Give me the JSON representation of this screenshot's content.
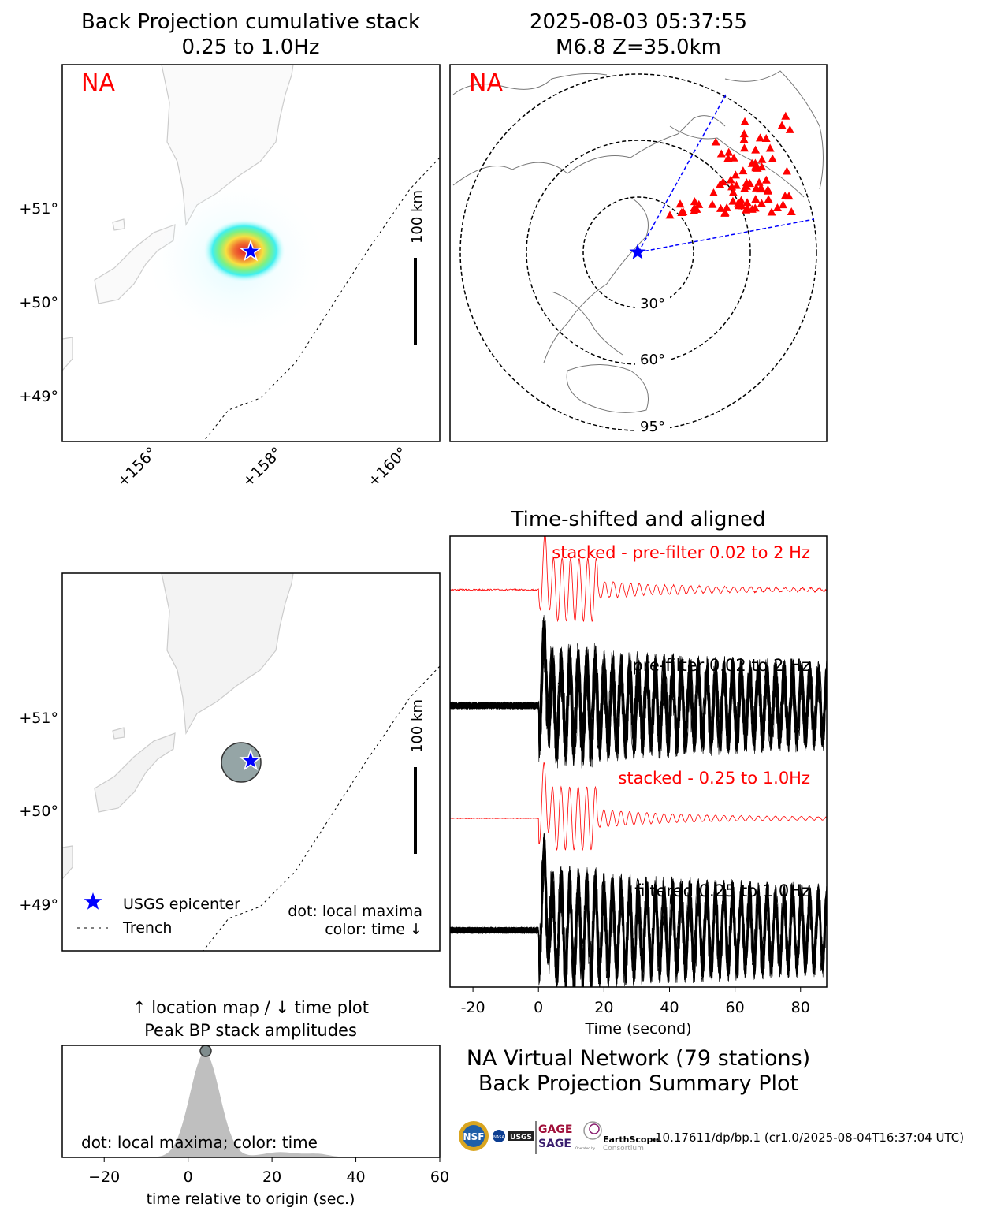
{
  "chart_data": [
    {
      "type": "heatmap",
      "title": [
        "Back Projection cumulative stack",
        "0.25 to 1.0Hz"
      ],
      "network_label": "NA",
      "lat_ticks": [
        "+49°",
        "+50°",
        "+51°"
      ],
      "lon_ticks": [
        "+156°",
        "+158°",
        "+160°"
      ],
      "scale_bar": "100 km",
      "epicenter": {
        "lon": 158.0,
        "lat": 50.5
      }
    },
    {
      "type": "scatter",
      "title": [
        "2025-08-03 05:37:55",
        "M6.8 Z=35.0km"
      ],
      "network_label": "NA",
      "distance_rings": [
        "30°",
        "60°",
        "95°"
      ],
      "station_count": 79
    },
    {
      "type": "scatter",
      "lat_ticks": [
        "+49°",
        "+50°",
        "+51°"
      ],
      "scale_bar": "100 km",
      "legend": [
        {
          "label": "USGS epicenter",
          "marker": "star"
        },
        {
          "label": "Trench",
          "marker": "dashed"
        }
      ],
      "legend_placement": "lower-left",
      "annotation": [
        "dot: local maxima",
        "color: time ↓"
      ]
    },
    {
      "type": "line",
      "title": "Time-shifted and aligned",
      "xlabel": "Time (second)",
      "xlim": [
        -27,
        88
      ],
      "xticks": [
        -20,
        0,
        20,
        40,
        60,
        80
      ],
      "traces": [
        {
          "label": "stacked - pre-filter 0.02 to 2 Hz",
          "color": "#ff0000"
        },
        {
          "label": "pre-filter 0.02 to 2 Hz",
          "color": "#000000"
        },
        {
          "label": "stacked - 0.25 to 1.0Hz",
          "color": "#ff0000"
        },
        {
          "label": "filtered 0.25 to 1.0Hz",
          "color": "#000000"
        }
      ]
    },
    {
      "type": "area",
      "title": [
        "↑ location map / ↓ time plot",
        "Peak BP stack amplitudes"
      ],
      "xlabel": "time relative to origin (sec.)",
      "xlim": [
        -30,
        60
      ],
      "xticks": [
        -20,
        0,
        20,
        40,
        60
      ],
      "peak_time": 4,
      "annotation": "dot: local maxima; color: time"
    }
  ],
  "footer": {
    "title": [
      "NA Virtual Network (79 stations)",
      "Back Projection Summary Plot"
    ],
    "logos": [
      "NSF",
      "NASA",
      "USGS",
      "GAGE",
      "SAGE",
      "EarthScope",
      "Consortium",
      "Operated by"
    ],
    "doi": "10.17611/dp/bp.1 (cr1.0/2025-08-04T16:37:04 UTC)"
  },
  "colors": {
    "station": "#ff0000",
    "epicenter": "#0000ff",
    "dot": "#95a5a6"
  }
}
